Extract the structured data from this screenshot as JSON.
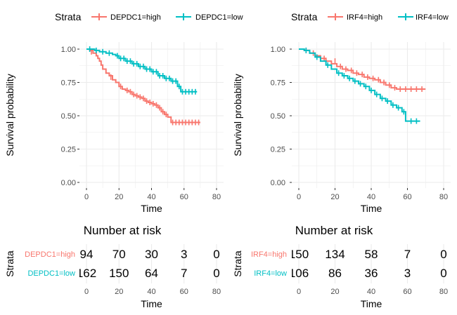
{
  "colors": {
    "high": "#F8766D",
    "low": "#00BFC4",
    "grid": "#EBEBEB",
    "text": "#000000",
    "tick": "#4D4D4D"
  },
  "chart_data": [
    {
      "type": "line",
      "subtype": "kaplan-meier",
      "legend_title": "Strata",
      "legend_position": "top",
      "xlabel": "Time",
      "ylabel": "Survival probability",
      "xlim": [
        0,
        80
      ],
      "ylim": [
        0,
        1
      ],
      "x_ticks": [
        0,
        20,
        40,
        60,
        80
      ],
      "y_ticks": [
        0,
        0.25,
        0.5,
        0.75,
        1
      ],
      "y_tick_labels": [
        "0.00",
        "0.25",
        "0.50",
        "0.75",
        "1.00"
      ],
      "grid": true,
      "series": [
        {
          "name": "DEPDC1=high",
          "color": "#F8766D",
          "x": [
            0,
            2,
            4,
            6,
            7,
            8,
            9,
            10,
            12,
            14,
            16,
            18,
            20,
            22,
            24,
            26,
            28,
            30,
            32,
            34,
            36,
            38,
            40,
            42,
            44,
            46,
            48,
            50,
            52,
            54,
            70
          ],
          "y": [
            1,
            0.99,
            0.97,
            0.95,
            0.93,
            0.91,
            0.88,
            0.85,
            0.82,
            0.8,
            0.77,
            0.75,
            0.72,
            0.7,
            0.69,
            0.68,
            0.66,
            0.65,
            0.64,
            0.63,
            0.61,
            0.6,
            0.59,
            0.58,
            0.56,
            0.53,
            0.51,
            0.49,
            0.45,
            0.45,
            0.45
          ],
          "censor_x": [
            3,
            15,
            21,
            25,
            27,
            29,
            31,
            33,
            35,
            37,
            39,
            41,
            43,
            45,
            47,
            49,
            53,
            55,
            57,
            59,
            61,
            63,
            65,
            67,
            69
          ],
          "censor_y": [
            0.98,
            0.79,
            0.72,
            0.69,
            0.68,
            0.66,
            0.65,
            0.64,
            0.63,
            0.61,
            0.6,
            0.59,
            0.58,
            0.56,
            0.53,
            0.51,
            0.45,
            0.45,
            0.45,
            0.45,
            0.45,
            0.45,
            0.45,
            0.45,
            0.45
          ]
        },
        {
          "name": "DEPDC1=low",
          "color": "#00BFC4",
          "x": [
            0,
            5,
            8,
            12,
            16,
            18,
            20,
            24,
            28,
            32,
            36,
            40,
            44,
            48,
            52,
            56,
            58,
            68
          ],
          "y": [
            1,
            0.99,
            0.98,
            0.97,
            0.96,
            0.95,
            0.93,
            0.91,
            0.89,
            0.87,
            0.85,
            0.83,
            0.8,
            0.78,
            0.76,
            0.72,
            0.68,
            0.68
          ],
          "censor_x": [
            2,
            6,
            10,
            14,
            19,
            21,
            23,
            25,
            27,
            29,
            31,
            33,
            35,
            37,
            39,
            41,
            43,
            45,
            47,
            49,
            51,
            53,
            55,
            57,
            59,
            61,
            63,
            65,
            67
          ],
          "censor_y": [
            1,
            0.99,
            0.98,
            0.97,
            0.95,
            0.93,
            0.93,
            0.91,
            0.91,
            0.89,
            0.89,
            0.87,
            0.87,
            0.85,
            0.85,
            0.83,
            0.83,
            0.8,
            0.8,
            0.78,
            0.78,
            0.76,
            0.76,
            0.72,
            0.68,
            0.68,
            0.68,
            0.68,
            0.68
          ]
        }
      ]
    },
    {
      "type": "line",
      "subtype": "kaplan-meier",
      "legend_title": "Strata",
      "legend_position": "top",
      "xlabel": "Time",
      "ylabel": "Survival probability",
      "xlim": [
        0,
        80
      ],
      "ylim": [
        0,
        1
      ],
      "x_ticks": [
        0,
        20,
        40,
        60,
        80
      ],
      "y_ticks": [
        0,
        0.25,
        0.5,
        0.75,
        1
      ],
      "y_tick_labels": [
        "0.00",
        "0.25",
        "0.50",
        "0.75",
        "1.00"
      ],
      "grid": true,
      "series": [
        {
          "name": "IRF4=high",
          "color": "#F8766D",
          "x": [
            0,
            3,
            6,
            9,
            12,
            15,
            18,
            21,
            24,
            27,
            30,
            33,
            36,
            39,
            42,
            45,
            48,
            51,
            54,
            57,
            70
          ],
          "y": [
            1,
            0.99,
            0.97,
            0.95,
            0.93,
            0.91,
            0.89,
            0.87,
            0.85,
            0.84,
            0.82,
            0.81,
            0.79,
            0.78,
            0.77,
            0.75,
            0.73,
            0.71,
            0.7,
            0.7,
            0.7
          ],
          "censor_x": [
            4,
            8,
            14,
            20,
            23,
            26,
            29,
            32,
            35,
            38,
            41,
            44,
            47,
            50,
            53,
            56,
            59,
            62,
            65,
            68
          ],
          "censor_y": [
            0.99,
            0.97,
            0.93,
            0.91,
            0.87,
            0.85,
            0.84,
            0.82,
            0.81,
            0.79,
            0.78,
            0.77,
            0.75,
            0.73,
            0.71,
            0.7,
            0.7,
            0.7,
            0.7,
            0.7
          ]
        },
        {
          "name": "IRF4=low",
          "color": "#00BFC4",
          "x": [
            0,
            3,
            6,
            9,
            12,
            15,
            18,
            21,
            24,
            27,
            30,
            33,
            36,
            39,
            42,
            45,
            48,
            51,
            54,
            57,
            59,
            67
          ],
          "y": [
            1,
            0.99,
            0.97,
            0.94,
            0.91,
            0.88,
            0.85,
            0.82,
            0.8,
            0.78,
            0.76,
            0.74,
            0.72,
            0.69,
            0.66,
            0.63,
            0.61,
            0.58,
            0.56,
            0.53,
            0.46,
            0.46
          ],
          "censor_x": [
            4,
            10,
            16,
            22,
            25,
            28,
            31,
            34,
            37,
            40,
            43,
            46,
            49,
            52,
            55,
            58,
            62,
            65
          ],
          "censor_y": [
            0.99,
            0.94,
            0.88,
            0.82,
            0.8,
            0.78,
            0.76,
            0.74,
            0.72,
            0.69,
            0.66,
            0.63,
            0.61,
            0.58,
            0.56,
            0.53,
            0.46,
            0.46
          ]
        }
      ]
    },
    {
      "type": "table",
      "title": "Number at risk",
      "ylabel": "Strata",
      "xlabel": "Time",
      "x_ticks": [
        0,
        20,
        40,
        60,
        80
      ],
      "rows": [
        {
          "label": "DEPDC1=high",
          "color": "#F8766D",
          "values": [
            "94",
            "70",
            "30",
            "3",
            "0"
          ]
        },
        {
          "label": "DEPDC1=low",
          "color": "#00BFC4",
          "values": [
            "162",
            "150",
            "64",
            "7",
            "0"
          ]
        }
      ]
    },
    {
      "type": "table",
      "title": "Number at risk",
      "ylabel": "Strata",
      "xlabel": "Time",
      "x_ticks": [
        0,
        20,
        40,
        60,
        80
      ],
      "rows": [
        {
          "label": "IRF4=high",
          "color": "#F8766D",
          "values": [
            "150",
            "134",
            "58",
            "7",
            "0"
          ]
        },
        {
          "label": "IRF4=low",
          "color": "#00BFC4",
          "values": [
            "106",
            "86",
            "36",
            "3",
            "0"
          ]
        }
      ]
    }
  ]
}
